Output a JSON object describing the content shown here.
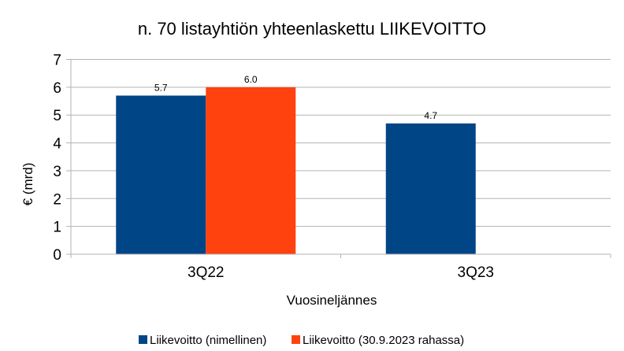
{
  "chart_data": {
    "type": "bar",
    "title": "n. 70 listayhtiön yhteenlaskettu LIIKEVOITTO",
    "xlabel": "Vuosineljännes",
    "ylabel": "€ (mrd)",
    "categories": [
      "3Q22",
      "3Q23"
    ],
    "series": [
      {
        "name": "Liikevoitto (nimellinen)",
        "color": "#004586",
        "values": [
          5.7,
          4.7
        ],
        "labels": [
          "5.7",
          "4.7"
        ]
      },
      {
        "name": "Liikevoitto (30.9.2023 rahassa)",
        "color": "#ff420e",
        "values": [
          6.0,
          null
        ],
        "labels": [
          "6.0",
          ""
        ]
      }
    ],
    "ylim": [
      0,
      7
    ],
    "yticks": [
      "0",
      "1",
      "2",
      "3",
      "4",
      "5",
      "6",
      "7"
    ],
    "grid": true,
    "legend_position": "bottom"
  }
}
